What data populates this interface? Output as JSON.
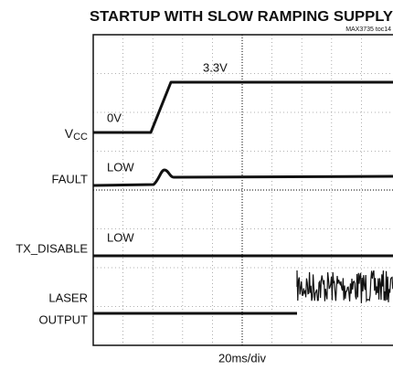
{
  "title": "STARTUP WITH SLOW RAMPING SUPPLY",
  "subtitle": "MAX3735 toc14",
  "channels": [
    {
      "label": {
        "main": "V",
        "sub": "CC"
      }
    },
    {
      "label": "FAULT"
    },
    {
      "label": "TX_DISABLE"
    },
    {
      "label": [
        "LASER",
        "OUTPUT"
      ]
    }
  ],
  "annotations": [
    "3.3V",
    "0V",
    "LOW",
    "LOW"
  ],
  "x_scale": "20ms/div"
}
